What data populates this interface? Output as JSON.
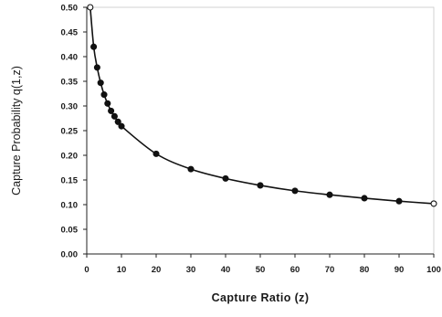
{
  "chart_data": {
    "type": "line",
    "title": "",
    "xlabel": "Capture Ratio (z)",
    "ylabel": "Capture Probability q(1,z)",
    "xlim": [
      0,
      100
    ],
    "ylim": [
      0,
      0.5
    ],
    "x_ticks": [
      "0",
      "10",
      "20",
      "30",
      "40",
      "50",
      "60",
      "70",
      "80",
      "90",
      "100"
    ],
    "y_ticks": [
      "0.00",
      "0.05",
      "0.10",
      "0.15",
      "0.20",
      "0.25",
      "0.30",
      "0.35",
      "0.40",
      "0.45",
      "0.50"
    ],
    "grid": false,
    "series": [
      {
        "color": "#111111",
        "marker": "circle",
        "x": [
          1,
          2,
          3,
          4,
          5,
          6,
          7,
          8,
          9,
          10,
          20,
          30,
          40,
          50,
          60,
          70,
          80,
          90,
          100
        ],
        "y": [
          0.5,
          0.42,
          0.378,
          0.347,
          0.323,
          0.305,
          0.29,
          0.279,
          0.268,
          0.259,
          0.203,
          0.172,
          0.153,
          0.139,
          0.128,
          0.12,
          0.113,
          0.107,
          0.102
        ]
      }
    ]
  }
}
